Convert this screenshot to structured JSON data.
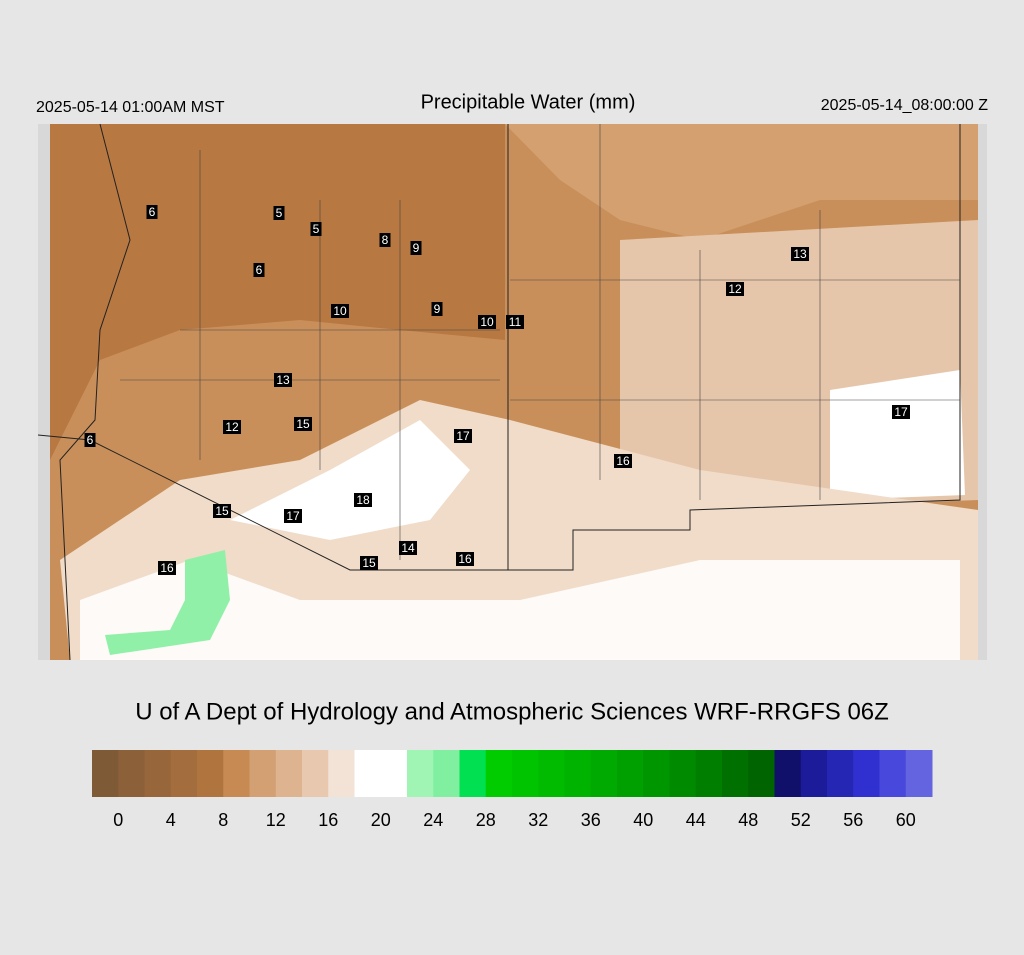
{
  "header": {
    "left": "2025-05-14 01:00AM MST",
    "title": "Precipitable Water (mm)",
    "right": "2025-05-14_08:00:00 Z"
  },
  "map": {
    "labels": [
      6,
      5,
      5,
      8,
      9,
      6,
      10,
      9,
      10,
      11,
      12,
      13,
      13,
      15,
      12,
      17,
      17,
      16,
      6,
      18,
      15,
      17,
      14,
      16,
      15,
      16
    ]
  },
  "credit": "U of A Dept of Hydrology and Atmospheric Sciences WRF-RRGFS 06Z",
  "colorbar": {
    "lim": [
      -2,
      62
    ],
    "colors": [
      "#7f5a36",
      "#8c6039",
      "#97663b",
      "#a36d3d",
      "#b0753f",
      "#c68a52",
      "#d2a072",
      "#ddb48f",
      "#e8c9af",
      "#f2e3d6",
      "#ffffff",
      "#ffffff",
      "#a0f5b4",
      "#80f0a0",
      "#00e050",
      "#00cc00",
      "#00c400",
      "#00bb00",
      "#00b300",
      "#00aa00",
      "#00a000",
      "#009600",
      "#008a00",
      "#007e00",
      "#007000",
      "#006400",
      "#10106a",
      "#1c1c9a",
      "#2626b4",
      "#3030d0",
      "#4848dc",
      "#6464e0"
    ],
    "ticks": [
      0,
      4,
      8,
      12,
      16,
      20,
      24,
      28,
      32,
      36,
      40,
      44,
      48,
      52,
      56,
      60
    ]
  }
}
